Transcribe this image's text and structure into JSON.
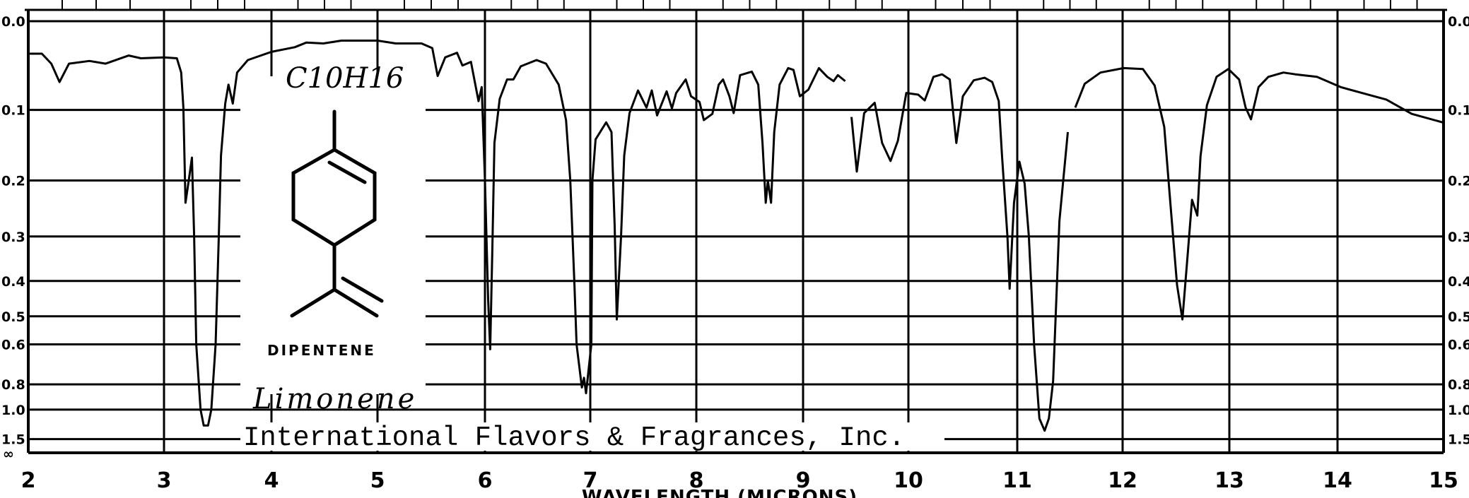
{
  "chart_data": {
    "type": "line",
    "title": "",
    "xlabel": "WAVELENGTH (MICRONS)",
    "ylabel": "",
    "x_ticks": [
      "2",
      "3",
      "4",
      "5",
      "6",
      "7",
      "8",
      "9",
      "10",
      "11",
      "12",
      "13",
      "14",
      "15"
    ],
    "y_ticks": [
      "0.0",
      "0.1",
      "0.2",
      "0.3",
      "0.4",
      "0.5",
      "0.6",
      "0.8",
      "1.0",
      "1.5"
    ],
    "y_tick_values": [
      0.0,
      0.1,
      0.2,
      0.3,
      0.4,
      0.5,
      0.6,
      0.8,
      1.0,
      1.5
    ],
    "y_infinity_label": "∞",
    "xlim": [
      2,
      15
    ],
    "y_scale": "absorbance (linear in transmittance)",
    "grid": true,
    "line_color": "#000000",
    "series": [
      {
        "segments": [
          [
            [
              2.0,
              0.034
            ],
            [
              2.1,
              0.034
            ],
            [
              2.17,
              0.045
            ],
            [
              2.23,
              0.066
            ],
            [
              2.3,
              0.045
            ],
            [
              2.45,
              0.042
            ],
            [
              2.57,
              0.045
            ],
            [
              2.74,
              0.036
            ],
            [
              2.83,
              0.039
            ],
            [
              3.0,
              0.038
            ],
            [
              3.12,
              0.039
            ],
            [
              3.16,
              0.055
            ],
            [
              3.18,
              0.097
            ],
            [
              3.2,
              0.237
            ],
            [
              3.23,
              0.2
            ],
            [
              3.26,
              0.165
            ],
            [
              3.28,
              0.298
            ],
            [
              3.3,
              0.6
            ],
            [
              3.34,
              1.0
            ],
            [
              3.37,
              1.2
            ],
            [
              3.41,
              1.2
            ],
            [
              3.44,
              1.0
            ],
            [
              3.48,
              0.6
            ],
            [
              3.51,
              0.3
            ],
            [
              3.53,
              0.162
            ],
            [
              3.57,
              0.092
            ],
            [
              3.6,
              0.069
            ],
            [
              3.64,
              0.092
            ],
            [
              3.68,
              0.055
            ],
            [
              3.78,
              0.041
            ],
            [
              4.0,
              0.032
            ],
            [
              4.22,
              0.027
            ],
            [
              4.33,
              0.022
            ],
            [
              4.49,
              0.023
            ],
            [
              4.66,
              0.02
            ],
            [
              5.0,
              0.02
            ],
            [
              5.17,
              0.023
            ],
            [
              5.41,
              0.023
            ],
            [
              5.51,
              0.028
            ],
            [
              5.56,
              0.059
            ],
            [
              5.63,
              0.038
            ],
            [
              5.74,
              0.033
            ],
            [
              5.79,
              0.047
            ],
            [
              5.87,
              0.043
            ],
            [
              5.94,
              0.089
            ],
            [
              5.97,
              0.072
            ],
            [
              6.0,
              0.2
            ],
            [
              6.03,
              0.45
            ],
            [
              6.05,
              0.62
            ],
            [
              6.07,
              0.33
            ],
            [
              6.09,
              0.144
            ],
            [
              6.14,
              0.086
            ],
            [
              6.21,
              0.063
            ],
            [
              6.27,
              0.063
            ],
            [
              6.34,
              0.048
            ],
            [
              6.49,
              0.041
            ],
            [
              6.58,
              0.045
            ],
            [
              6.7,
              0.069
            ],
            [
              6.77,
              0.113
            ],
            [
              6.81,
              0.2
            ],
            [
              6.85,
              0.41
            ],
            [
              6.87,
              0.6
            ],
            [
              6.92,
              0.82
            ],
            [
              6.94,
              0.76
            ],
            [
              6.96,
              0.86
            ],
            [
              7.01,
              0.6
            ],
            [
              7.02,
              0.2
            ],
            [
              7.05,
              0.139
            ],
            [
              7.15,
              0.116
            ],
            [
              7.2,
              0.129
            ],
            [
              7.23,
              0.28
            ],
            [
              7.25,
              0.51
            ],
            [
              7.29,
              0.3
            ],
            [
              7.32,
              0.162
            ],
            [
              7.37,
              0.104
            ],
            [
              7.45,
              0.076
            ],
            [
              7.53,
              0.097
            ],
            [
              7.58,
              0.076
            ],
            [
              7.63,
              0.107
            ],
            [
              7.72,
              0.077
            ],
            [
              7.77,
              0.098
            ],
            [
              7.81,
              0.079
            ],
            [
              7.9,
              0.063
            ],
            [
              7.95,
              0.083
            ],
            [
              8.03,
              0.09
            ],
            [
              8.07,
              0.113
            ],
            [
              8.15,
              0.105
            ],
            [
              8.21,
              0.069
            ],
            [
              8.25,
              0.063
            ],
            [
              8.31,
              0.083
            ],
            [
              8.35,
              0.104
            ],
            [
              8.41,
              0.058
            ],
            [
              8.52,
              0.054
            ],
            [
              8.58,
              0.069
            ],
            [
              8.62,
              0.144
            ],
            [
              8.65,
              0.237
            ],
            [
              8.67,
              0.2
            ],
            [
              8.7,
              0.237
            ],
            [
              8.73,
              0.129
            ],
            [
              8.78,
              0.069
            ],
            [
              8.86,
              0.05
            ],
            [
              8.91,
              0.052
            ],
            [
              8.97,
              0.083
            ],
            [
              9.05,
              0.075
            ],
            [
              9.15,
              0.05
            ],
            [
              9.23,
              0.06
            ],
            [
              9.29,
              0.065
            ],
            [
              9.33,
              0.058
            ],
            [
              9.4,
              0.065
            ]
          ],
          [
            [
              9.46,
              0.109
            ],
            [
              9.51,
              0.186
            ],
            [
              9.58,
              0.104
            ],
            [
              9.68,
              0.091
            ],
            [
              9.75,
              0.144
            ],
            [
              9.83,
              0.17
            ],
            [
              9.9,
              0.141
            ],
            [
              9.98,
              0.079
            ],
            [
              10.09,
              0.081
            ],
            [
              10.15,
              0.088
            ],
            [
              10.23,
              0.06
            ],
            [
              10.31,
              0.057
            ],
            [
              10.38,
              0.063
            ],
            [
              10.44,
              0.144
            ],
            [
              10.5,
              0.083
            ],
            [
              10.6,
              0.064
            ],
            [
              10.7,
              0.061
            ],
            [
              10.77,
              0.066
            ],
            [
              10.83,
              0.089
            ],
            [
              10.86,
              0.162
            ],
            [
              10.91,
              0.3
            ],
            [
              10.93,
              0.42
            ],
            [
              10.97,
              0.237
            ],
            [
              11.02,
              0.171
            ],
            [
              11.07,
              0.205
            ],
            [
              11.11,
              0.3
            ],
            [
              11.16,
              0.6
            ],
            [
              11.21,
              1.1
            ],
            [
              11.26,
              1.29
            ],
            [
              11.3,
              1.1
            ],
            [
              11.34,
              0.78
            ],
            [
              11.4,
              0.27
            ],
            [
              11.48,
              0.129
            ]
          ],
          [
            [
              11.55,
              0.097
            ],
            [
              11.64,
              0.068
            ],
            [
              11.79,
              0.055
            ],
            [
              12.01,
              0.05
            ],
            [
              12.19,
              0.051
            ],
            [
              12.3,
              0.07
            ],
            [
              12.39,
              0.122
            ],
            [
              12.45,
              0.243
            ],
            [
              12.51,
              0.41
            ],
            [
              12.56,
              0.51
            ],
            [
              12.61,
              0.337
            ],
            [
              12.65,
              0.232
            ],
            [
              12.7,
              0.26
            ],
            [
              12.73,
              0.163
            ],
            [
              12.79,
              0.094
            ],
            [
              12.88,
              0.06
            ],
            [
              12.99,
              0.051
            ],
            [
              13.09,
              0.063
            ],
            [
              13.15,
              0.097
            ],
            [
              13.2,
              0.112
            ],
            [
              13.27,
              0.072
            ],
            [
              13.36,
              0.06
            ],
            [
              13.5,
              0.055
            ],
            [
              13.61,
              0.057
            ],
            [
              13.81,
              0.06
            ],
            [
              14.03,
              0.072
            ],
            [
              14.26,
              0.08
            ],
            [
              14.46,
              0.087
            ],
            [
              14.7,
              0.105
            ],
            [
              14.99,
              0.116
            ]
          ]
        ]
      }
    ],
    "annotations": {
      "formula": "C10H16",
      "compound_name": "DIPENTENE",
      "handwritten_name": "Limonene",
      "company": "International Flavors & Fragrances, Inc."
    }
  }
}
